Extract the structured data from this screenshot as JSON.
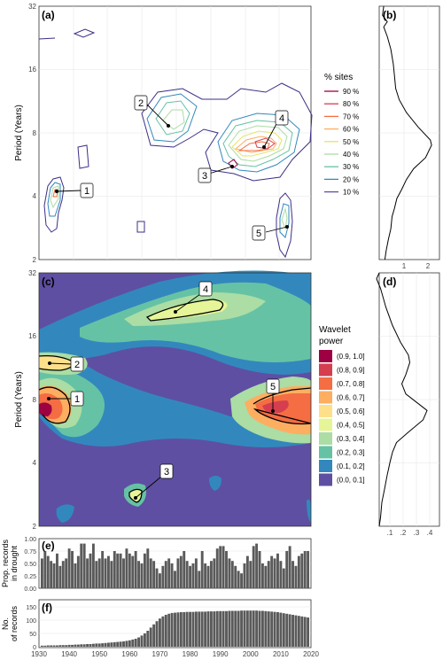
{
  "panels": {
    "a": {
      "tag": "(a)",
      "ylabel": "Period (Years)",
      "y_ticks": [
        "32",
        "16",
        "8",
        "4",
        "2"
      ],
      "legend_title": "% sites",
      "legend_items": [
        "90 %",
        "80 %",
        "70 %",
        "60 %",
        "50 %",
        "40 %",
        "30 %",
        "20 %",
        "10 %"
      ],
      "legend_colors": [
        "#9e0142",
        "#d53e4f",
        "#f46d43",
        "#fdae61",
        "#e6e36a",
        "#abdda4",
        "#66c2a5",
        "#3288bd",
        "#5e4fa2"
      ],
      "callouts": [
        "1",
        "2",
        "3",
        "4",
        "5"
      ]
    },
    "b": {
      "tag": "(b)",
      "x_ticks": [
        "1",
        "2"
      ]
    },
    "c": {
      "tag": "(c)",
      "ylabel": "Period (Years)",
      "y_ticks": [
        "32",
        "16",
        "8",
        "4",
        "2"
      ],
      "legend_title_line1": "Wavelet",
      "legend_title_line2": "power",
      "legend_items": [
        "(0.9, 1.0]",
        "(0.8, 0.9]",
        "(0.7, 0.8]",
        "(0.6, 0.7]",
        "(0.5, 0.6]",
        "(0.4, 0.5]",
        "(0.3, 0.4]",
        "(0.2, 0.3]",
        "(0.1, 0.2]",
        "(0.0, 0.1]"
      ],
      "legend_colors": [
        "#9e0142",
        "#d53e4f",
        "#f46d43",
        "#fdae61",
        "#fee08b",
        "#e6f598",
        "#abdda4",
        "#66c2a5",
        "#3288bd",
        "#5e4fa2"
      ],
      "callouts": [
        "1",
        "2",
        "3",
        "4",
        "5"
      ]
    },
    "d": {
      "tag": "(d)",
      "x_ticks": [
        ".1",
        ".2",
        ".3",
        ".4"
      ]
    },
    "e": {
      "tag": "(e)",
      "ylabel_line1": "Prop. records",
      "ylabel_line2": "in drought",
      "y_ticks": [
        "1.00",
        "0.75",
        "0.50",
        "0.25",
        "0.00"
      ]
    },
    "f": {
      "tag": "(f)",
      "ylabel_line1": "No.",
      "ylabel_line2": "of records",
      "y_ticks": [
        "150",
        "100",
        "50",
        "0"
      ]
    }
  },
  "x_axis_ticks": [
    "1930",
    "1940",
    "1950",
    "1960",
    "1970",
    "1980",
    "1990",
    "2000",
    "2010",
    "2020"
  ],
  "chart_data": [
    {
      "type": "bar",
      "title": "(e)",
      "ylabel": "Prop. records in drought",
      "ylim": [
        0,
        1
      ],
      "x": [
        1931,
        1932,
        1933,
        1934,
        1935,
        1936,
        1937,
        1938,
        1939,
        1940,
        1941,
        1942,
        1943,
        1944,
        1945,
        1946,
        1947,
        1948,
        1949,
        1950,
        1951,
        1952,
        1953,
        1954,
        1955,
        1956,
        1957,
        1958,
        1959,
        1960,
        1961,
        1962,
        1963,
        1964,
        1965,
        1966,
        1967,
        1968,
        1969,
        1970,
        1971,
        1972,
        1973,
        1974,
        1975,
        1976,
        1977,
        1978,
        1979,
        1980,
        1981,
        1982,
        1983,
        1984,
        1985,
        1986,
        1987,
        1988,
        1989,
        1990,
        1991,
        1992,
        1993,
        1994,
        1995,
        1996,
        1997,
        1998,
        1999,
        2000,
        2001,
        2002,
        2003,
        2004,
        2005,
        2006,
        2007,
        2008,
        2009,
        2010,
        2011,
        2012,
        2013,
        2014,
        2015,
        2016,
        2017,
        2018,
        2019
      ],
      "values": [
        0.6,
        0.75,
        0.65,
        0.55,
        0.5,
        0.7,
        0.45,
        0.55,
        0.6,
        0.8,
        0.75,
        0.5,
        0.65,
        0.9,
        0.9,
        0.6,
        0.7,
        0.9,
        0.55,
        0.6,
        0.75,
        0.6,
        0.65,
        0.55,
        0.75,
        0.7,
        0.7,
        0.6,
        0.8,
        0.7,
        0.65,
        0.75,
        0.55,
        0.5,
        0.7,
        0.8,
        0.6,
        0.55,
        0.4,
        0.3,
        0.45,
        0.55,
        0.6,
        0.5,
        0.35,
        0.6,
        0.65,
        0.75,
        0.55,
        0.45,
        0.5,
        0.6,
        0.35,
        0.75,
        0.5,
        0.45,
        0.55,
        0.6,
        0.8,
        0.85,
        0.85,
        0.75,
        0.6,
        0.55,
        0.45,
        0.35,
        0.3,
        0.5,
        0.65,
        0.55,
        0.85,
        0.9,
        0.75,
        0.5,
        0.45,
        0.55,
        0.65,
        0.6,
        0.7,
        0.55,
        0.4,
        0.75,
        0.85,
        0.55,
        0.45,
        0.65,
        0.7,
        0.75,
        0.75
      ]
    },
    {
      "type": "bar",
      "title": "(f)",
      "ylabel": "No. of records",
      "ylim": [
        0,
        150
      ],
      "x": [
        1931,
        1932,
        1933,
        1934,
        1935,
        1936,
        1937,
        1938,
        1939,
        1940,
        1941,
        1942,
        1943,
        1944,
        1945,
        1946,
        1947,
        1948,
        1949,
        1950,
        1951,
        1952,
        1953,
        1954,
        1955,
        1956,
        1957,
        1958,
        1959,
        1960,
        1961,
        1962,
        1963,
        1964,
        1965,
        1966,
        1967,
        1968,
        1969,
        1970,
        1971,
        1972,
        1973,
        1974,
        1975,
        1976,
        1977,
        1978,
        1979,
        1980,
        1981,
        1982,
        1983,
        1984,
        1985,
        1986,
        1987,
        1988,
        1989,
        1990,
        1991,
        1992,
        1993,
        1994,
        1995,
        1996,
        1997,
        1998,
        1999,
        2000,
        2001,
        2002,
        2003,
        2004,
        2005,
        2006,
        2007,
        2008,
        2009,
        2010,
        2011,
        2012,
        2013,
        2014,
        2015,
        2016,
        2017,
        2018,
        2019
      ],
      "values": [
        4,
        4,
        5,
        5,
        5,
        5,
        6,
        6,
        6,
        7,
        7,
        8,
        8,
        9,
        9,
        10,
        10,
        11,
        12,
        12,
        13,
        14,
        15,
        16,
        17,
        18,
        19,
        20,
        22,
        24,
        27,
        30,
        35,
        42,
        50,
        60,
        72,
        84,
        96,
        106,
        114,
        120,
        124,
        127,
        128,
        129,
        130,
        130,
        131,
        131,
        131,
        132,
        132,
        132,
        132,
        133,
        133,
        133,
        134,
        134,
        134,
        134,
        135,
        135,
        135,
        135,
        136,
        136,
        136,
        136,
        136,
        136,
        135,
        135,
        134,
        133,
        132,
        131,
        130,
        128,
        126,
        124,
        122,
        120,
        118,
        116,
        114,
        112,
        110
      ]
    },
    {
      "type": "line",
      "title": "(b)",
      "x_ticks": [
        1,
        2
      ],
      "series_points": [
        [
          0.15,
          32
        ],
        [
          0.1,
          29
        ],
        [
          0.3,
          27
        ],
        [
          0.15,
          25.5
        ],
        [
          0.3,
          23
        ],
        [
          0.45,
          20
        ],
        [
          0.55,
          17
        ],
        [
          0.6,
          15
        ],
        [
          0.65,
          13
        ],
        [
          0.8,
          11.5
        ],
        [
          1.1,
          10
        ],
        [
          1.6,
          8.5
        ],
        [
          2.1,
          7.4
        ],
        [
          2.15,
          7
        ],
        [
          1.9,
          6.1
        ],
        [
          1.4,
          5.4
        ],
        [
          1.1,
          4.8
        ],
        [
          0.9,
          4.3
        ],
        [
          0.7,
          3.9
        ],
        [
          0.6,
          3.5
        ],
        [
          0.5,
          3.2
        ],
        [
          0.45,
          2.8
        ],
        [
          0.35,
          2.5
        ],
        [
          0.25,
          2.2
        ],
        [
          0.2,
          2
        ]
      ]
    },
    {
      "type": "line",
      "title": "(d)",
      "x_ticks": [
        0.1,
        0.2,
        0.3,
        0.4
      ],
      "series_points": [
        [
          0.02,
          32
        ],
        [
          0.0,
          30
        ],
        [
          0.03,
          27
        ],
        [
          0.07,
          22
        ],
        [
          0.12,
          18
        ],
        [
          0.18,
          15
        ],
        [
          0.24,
          13
        ],
        [
          0.25,
          12
        ],
        [
          0.22,
          10.5
        ],
        [
          0.19,
          9.5
        ],
        [
          0.22,
          8.5
        ],
        [
          0.32,
          7.6
        ],
        [
          0.38,
          7.1
        ],
        [
          0.35,
          6.4
        ],
        [
          0.24,
          5.6
        ],
        [
          0.15,
          5.0
        ],
        [
          0.12,
          4.5
        ],
        [
          0.1,
          4.0
        ],
        [
          0.08,
          3.5
        ],
        [
          0.06,
          3.0
        ],
        [
          0.04,
          2.6
        ],
        [
          0.03,
          2.2
        ],
        [
          0.02,
          2
        ]
      ]
    }
  ]
}
